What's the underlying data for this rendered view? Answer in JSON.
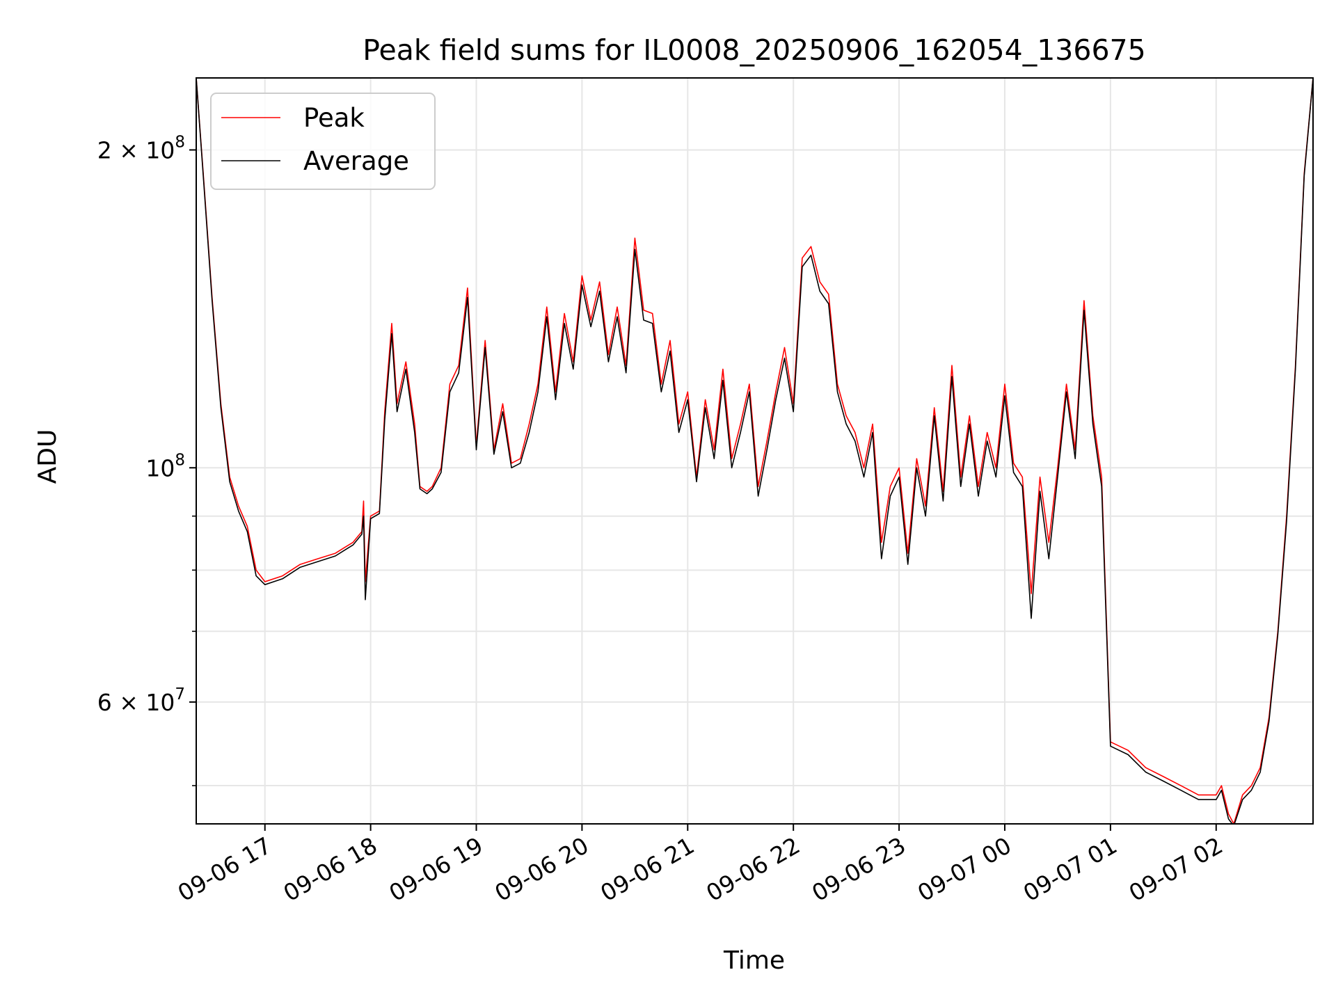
{
  "chart_data": {
    "type": "line",
    "title": "Peak field sums for IL0008_20250906_162054_136675",
    "xlabel": "Time",
    "ylabel": "ADU",
    "yscale": "log",
    "ylim": [
      46000000,
      234000000
    ],
    "xlim": [
      "09-06 16:21",
      "09-07 02:55"
    ],
    "grid": true,
    "legend_position": "top-left",
    "x_ticks": [
      {
        "value": "09-06 17:00",
        "label": "09-06 17"
      },
      {
        "value": "09-06 18:00",
        "label": "09-06 18"
      },
      {
        "value": "09-06 19:00",
        "label": "09-06 19"
      },
      {
        "value": "09-06 20:00",
        "label": "09-06 20"
      },
      {
        "value": "09-06 21:00",
        "label": "09-06 21"
      },
      {
        "value": "09-06 22:00",
        "label": "09-06 22"
      },
      {
        "value": "09-06 23:00",
        "label": "09-06 23"
      },
      {
        "value": "09-07 00:00",
        "label": "09-07 00"
      },
      {
        "value": "09-07 01:00",
        "label": "09-07 01"
      },
      {
        "value": "09-07 02:00",
        "label": "09-07 02"
      }
    ],
    "y_ticks": [
      {
        "value": 200000000,
        "base": "2 × 10",
        "exp": "8"
      },
      {
        "value": 100000000,
        "base": "10",
        "exp": "8"
      },
      {
        "value": 60000000,
        "base": "6 × 10",
        "exp": "7"
      }
    ],
    "y_minor_ticks": [
      50000000,
      70000000,
      80000000,
      90000000
    ],
    "x": [
      "09-06 16:21",
      "09-06 16:25",
      "09-06 16:30",
      "09-06 16:35",
      "09-06 16:40",
      "09-06 16:45",
      "09-06 16:50",
      "09-06 16:55",
      "09-06 17:00",
      "09-06 17:10",
      "09-06 17:20",
      "09-06 17:30",
      "09-06 17:40",
      "09-06 17:45",
      "09-06 17:50",
      "09-06 17:55",
      "09-06 17:56",
      "09-06 17:57",
      "09-06 18:00",
      "09-06 18:05",
      "09-06 18:08",
      "09-06 18:12",
      "09-06 18:15",
      "09-06 18:20",
      "09-06 18:25",
      "09-06 18:28",
      "09-06 18:32",
      "09-06 18:35",
      "09-06 18:40",
      "09-06 18:45",
      "09-06 18:50",
      "09-06 18:55",
      "09-06 19:00",
      "09-06 19:05",
      "09-06 19:10",
      "09-06 19:15",
      "09-06 19:20",
      "09-06 19:25",
      "09-06 19:30",
      "09-06 19:35",
      "09-06 19:40",
      "09-06 19:45",
      "09-06 19:50",
      "09-06 19:55",
      "09-06 20:00",
      "09-06 20:05",
      "09-06 20:10",
      "09-06 20:15",
      "09-06 20:20",
      "09-06 20:25",
      "09-06 20:30",
      "09-06 20:35",
      "09-06 20:40",
      "09-06 20:45",
      "09-06 20:50",
      "09-06 20:55",
      "09-06 21:00",
      "09-06 21:05",
      "09-06 21:10",
      "09-06 21:15",
      "09-06 21:20",
      "09-06 21:25",
      "09-06 21:30",
      "09-06 21:35",
      "09-06 21:40",
      "09-06 21:45",
      "09-06 21:50",
      "09-06 21:55",
      "09-06 22:00",
      "09-06 22:05",
      "09-06 22:10",
      "09-06 22:15",
      "09-06 22:20",
      "09-06 22:25",
      "09-06 22:30",
      "09-06 22:35",
      "09-06 22:40",
      "09-06 22:45",
      "09-06 22:50",
      "09-06 22:55",
      "09-06 23:00",
      "09-06 23:05",
      "09-06 23:10",
      "09-06 23:15",
      "09-06 23:20",
      "09-06 23:25",
      "09-06 23:30",
      "09-06 23:35",
      "09-06 23:40",
      "09-06 23:45",
      "09-06 23:50",
      "09-06 23:55",
      "09-07 00:00",
      "09-07 00:05",
      "09-07 00:10",
      "09-07 00:15",
      "09-07 00:20",
      "09-07 00:25",
      "09-07 00:30",
      "09-07 00:35",
      "09-07 00:40",
      "09-07 00:45",
      "09-07 00:50",
      "09-07 00:55",
      "09-07 01:00",
      "09-07 01:10",
      "09-07 01:20",
      "09-07 01:30",
      "09-07 01:40",
      "09-07 01:50",
      "09-07 02:00",
      "09-07 02:03",
      "09-07 02:07",
      "09-07 02:10",
      "09-07 02:15",
      "09-07 02:20",
      "09-07 02:25",
      "09-07 02:30",
      "09-07 02:35",
      "09-07 02:40",
      "09-07 02:45",
      "09-07 02:50",
      "09-07 02:55"
    ],
    "series": [
      {
        "name": "Peak",
        "color": "#ff0000",
        "values": [
          234000000,
          190000000,
          145000000,
          115000000,
          98000000,
          92000000,
          88000000,
          80000000,
          78000000,
          79000000,
          81000000,
          82000000,
          83000000,
          84000000,
          85000000,
          87000000,
          93000000,
          78000000,
          90000000,
          91000000,
          113000000,
          137000000,
          115000000,
          126000000,
          110000000,
          96000000,
          95000000,
          96000000,
          100000000,
          120000000,
          125000000,
          148000000,
          105000000,
          132000000,
          104000000,
          115000000,
          101000000,
          102000000,
          110000000,
          120000000,
          142000000,
          118000000,
          140000000,
          126000000,
          152000000,
          138000000,
          150000000,
          128000000,
          142000000,
          125000000,
          165000000,
          141000000,
          140000000,
          120000000,
          132000000,
          110000000,
          118000000,
          98000000,
          116000000,
          104000000,
          124000000,
          102000000,
          110000000,
          120000000,
          96000000,
          106000000,
          118000000,
          130000000,
          115000000,
          158000000,
          162000000,
          150000000,
          146000000,
          120000000,
          112000000,
          108000000,
          100000000,
          110000000,
          85000000,
          96000000,
          100000000,
          83000000,
          102000000,
          92000000,
          114000000,
          95000000,
          125000000,
          98000000,
          112000000,
          96000000,
          108000000,
          100000000,
          120000000,
          101000000,
          98000000,
          76000000,
          98000000,
          85000000,
          100000000,
          120000000,
          104000000,
          144000000,
          112000000,
          98000000,
          55000000,
          54000000,
          52000000,
          51000000,
          50000000,
          49000000,
          49000000,
          50000000,
          47000000,
          46000000,
          49000000,
          50000000,
          52000000,
          58000000,
          70000000,
          90000000,
          125000000,
          190000000,
          234000000
        ]
      },
      {
        "name": "Average",
        "color": "#000000",
        "values": [
          234000000,
          189000000,
          144000000,
          114000000,
          97000000,
          91000000,
          87000000,
          79000000,
          77500000,
          78500000,
          80500000,
          81500000,
          82500000,
          83500000,
          84500000,
          86500000,
          90000000,
          75000000,
          89500000,
          90500000,
          111000000,
          134000000,
          113000000,
          124000000,
          108000000,
          95500000,
          94500000,
          95500000,
          99000000,
          118000000,
          123000000,
          145000000,
          104000000,
          130000000,
          103000000,
          113000000,
          100000000,
          101000000,
          108000000,
          118000000,
          139000000,
          116000000,
          137000000,
          124000000,
          149000000,
          136000000,
          147000000,
          126000000,
          139000000,
          123000000,
          161000000,
          138000000,
          137000000,
          118000000,
          129000000,
          108000000,
          116000000,
          97000000,
          114000000,
          102000000,
          121000000,
          100000000,
          108000000,
          118000000,
          94000000,
          104000000,
          116000000,
          127000000,
          113000000,
          155000000,
          159000000,
          147000000,
          143000000,
          118000000,
          110000000,
          106000000,
          98000000,
          108000000,
          82000000,
          94000000,
          98000000,
          81000000,
          100000000,
          90000000,
          112000000,
          93000000,
          122000000,
          96000000,
          110000000,
          94000000,
          106000000,
          98000000,
          117000000,
          99000000,
          96000000,
          72000000,
          95000000,
          82000000,
          98000000,
          118000000,
          102000000,
          141000000,
          110000000,
          96000000,
          54500000,
          53500000,
          51500000,
          50500000,
          49500000,
          48500000,
          48500000,
          49500000,
          46500000,
          45800000,
          48500000,
          49500000,
          51500000,
          57500000,
          69500000,
          89000000,
          124000000,
          189000000,
          234000000
        ]
      }
    ]
  }
}
